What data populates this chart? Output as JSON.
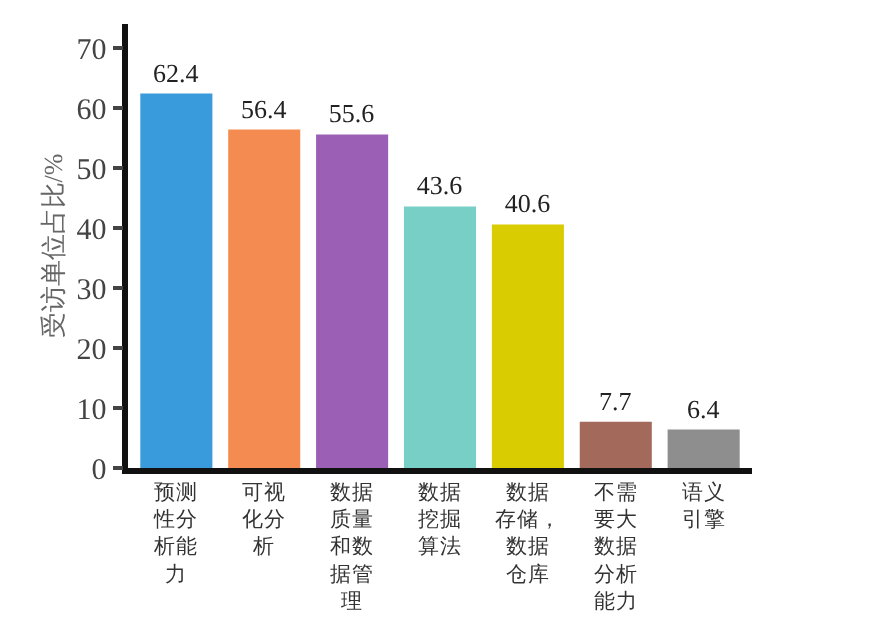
{
  "chart_data": {
    "type": "bar",
    "ylabel": "受访单位占比/%",
    "categories": [
      "预测性分析能力",
      "可视化分析",
      "数据质量和数据管理",
      "数据挖掘算法",
      "数据存储，数据仓库",
      "不需要大数据分析能力",
      "语义引擎"
    ],
    "values": [
      62.4,
      56.4,
      55.6,
      43.6,
      40.6,
      7.7,
      6.4
    ],
    "colors": [
      "#3a9bdc",
      "#f48c52",
      "#9b5fb5",
      "#78cfc6",
      "#d9cc00",
      "#a36a5c",
      "#8e8e8e"
    ],
    "ylim": [
      0,
      74
    ],
    "yticks": [
      0,
      10,
      20,
      30,
      40,
      50,
      60,
      70
    ],
    "data_labels": true,
    "grid": false,
    "legend": false
  }
}
